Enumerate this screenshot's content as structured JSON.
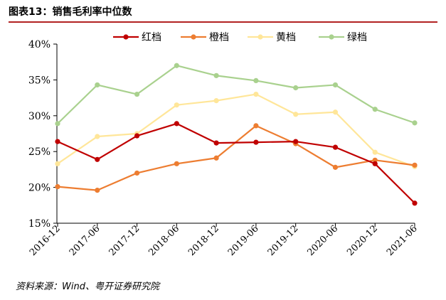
{
  "figure": {
    "title": "图表13：销售毛利率中位数",
    "source": "资料来源：Wind、粤开证券研究院"
  },
  "chart_data": {
    "type": "line",
    "title": "图表13：销售毛利率中位数",
    "xlabel": "",
    "ylabel": "",
    "ylim": [
      15,
      40
    ],
    "y_ticks": [
      "15%",
      "20%",
      "25%",
      "30%",
      "35%",
      "40%"
    ],
    "y_tick_values": [
      15,
      20,
      25,
      30,
      35,
      40
    ],
    "grid": false,
    "legend_position": "top-center",
    "categories": [
      "2016-12",
      "2017-06",
      "2017-12",
      "2018-06",
      "2018-12",
      "2019-06",
      "2019-12",
      "2020-06",
      "2020-12",
      "2021-06"
    ],
    "series": [
      {
        "name": "红档",
        "color": "#c00000",
        "values": [
          26.4,
          23.9,
          27.2,
          28.9,
          26.2,
          26.3,
          26.4,
          25.6,
          23.3,
          17.8
        ]
      },
      {
        "name": "橙档",
        "color": "#ed7d31",
        "values": [
          20.1,
          19.6,
          22.0,
          23.3,
          24.1,
          28.6,
          26.1,
          22.8,
          23.8,
          23.1
        ]
      },
      {
        "name": "黄档",
        "color": "#ffe699",
        "values": [
          23.3,
          27.1,
          27.5,
          31.5,
          32.1,
          33.0,
          30.2,
          30.5,
          24.9,
          22.9
        ]
      },
      {
        "name": "绿档",
        "color": "#a9d18e",
        "values": [
          28.9,
          34.3,
          33.0,
          37.0,
          35.6,
          34.9,
          33.9,
          34.3,
          30.9,
          29.0
        ]
      }
    ]
  }
}
